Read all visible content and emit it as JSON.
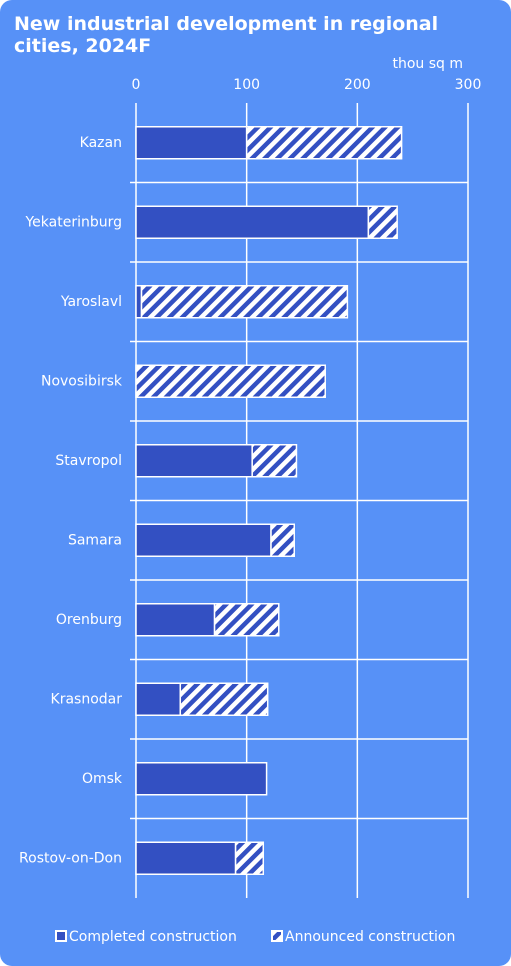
{
  "chart_data": {
    "type": "stacked-barh",
    "title": "New industrial development in regional cities, 2024F",
    "unit_label": "thou sq m",
    "categories": [
      "Kazan",
      "Yekaterinburg",
      "Yaroslavl",
      "Novosibirsk",
      "Stavropol",
      "Samara",
      "Orenburg",
      "Krasnodar",
      "Omsk",
      "Rostov-on-Don"
    ],
    "series": [
      {
        "name": "Completed construction",
        "color": "#3350c2",
        "values": [
          100,
          210,
          5,
          0,
          105,
          122,
          71,
          40,
          118,
          90
        ]
      },
      {
        "name": "Announced construction",
        "color": "#3350c2",
        "hatch": true,
        "values": [
          140,
          26,
          186,
          171,
          40,
          21,
          58,
          79,
          0,
          25
        ]
      }
    ],
    "xlim": [
      0,
      300
    ],
    "xticks": [
      0,
      100,
      200,
      300
    ],
    "grid": true
  }
}
